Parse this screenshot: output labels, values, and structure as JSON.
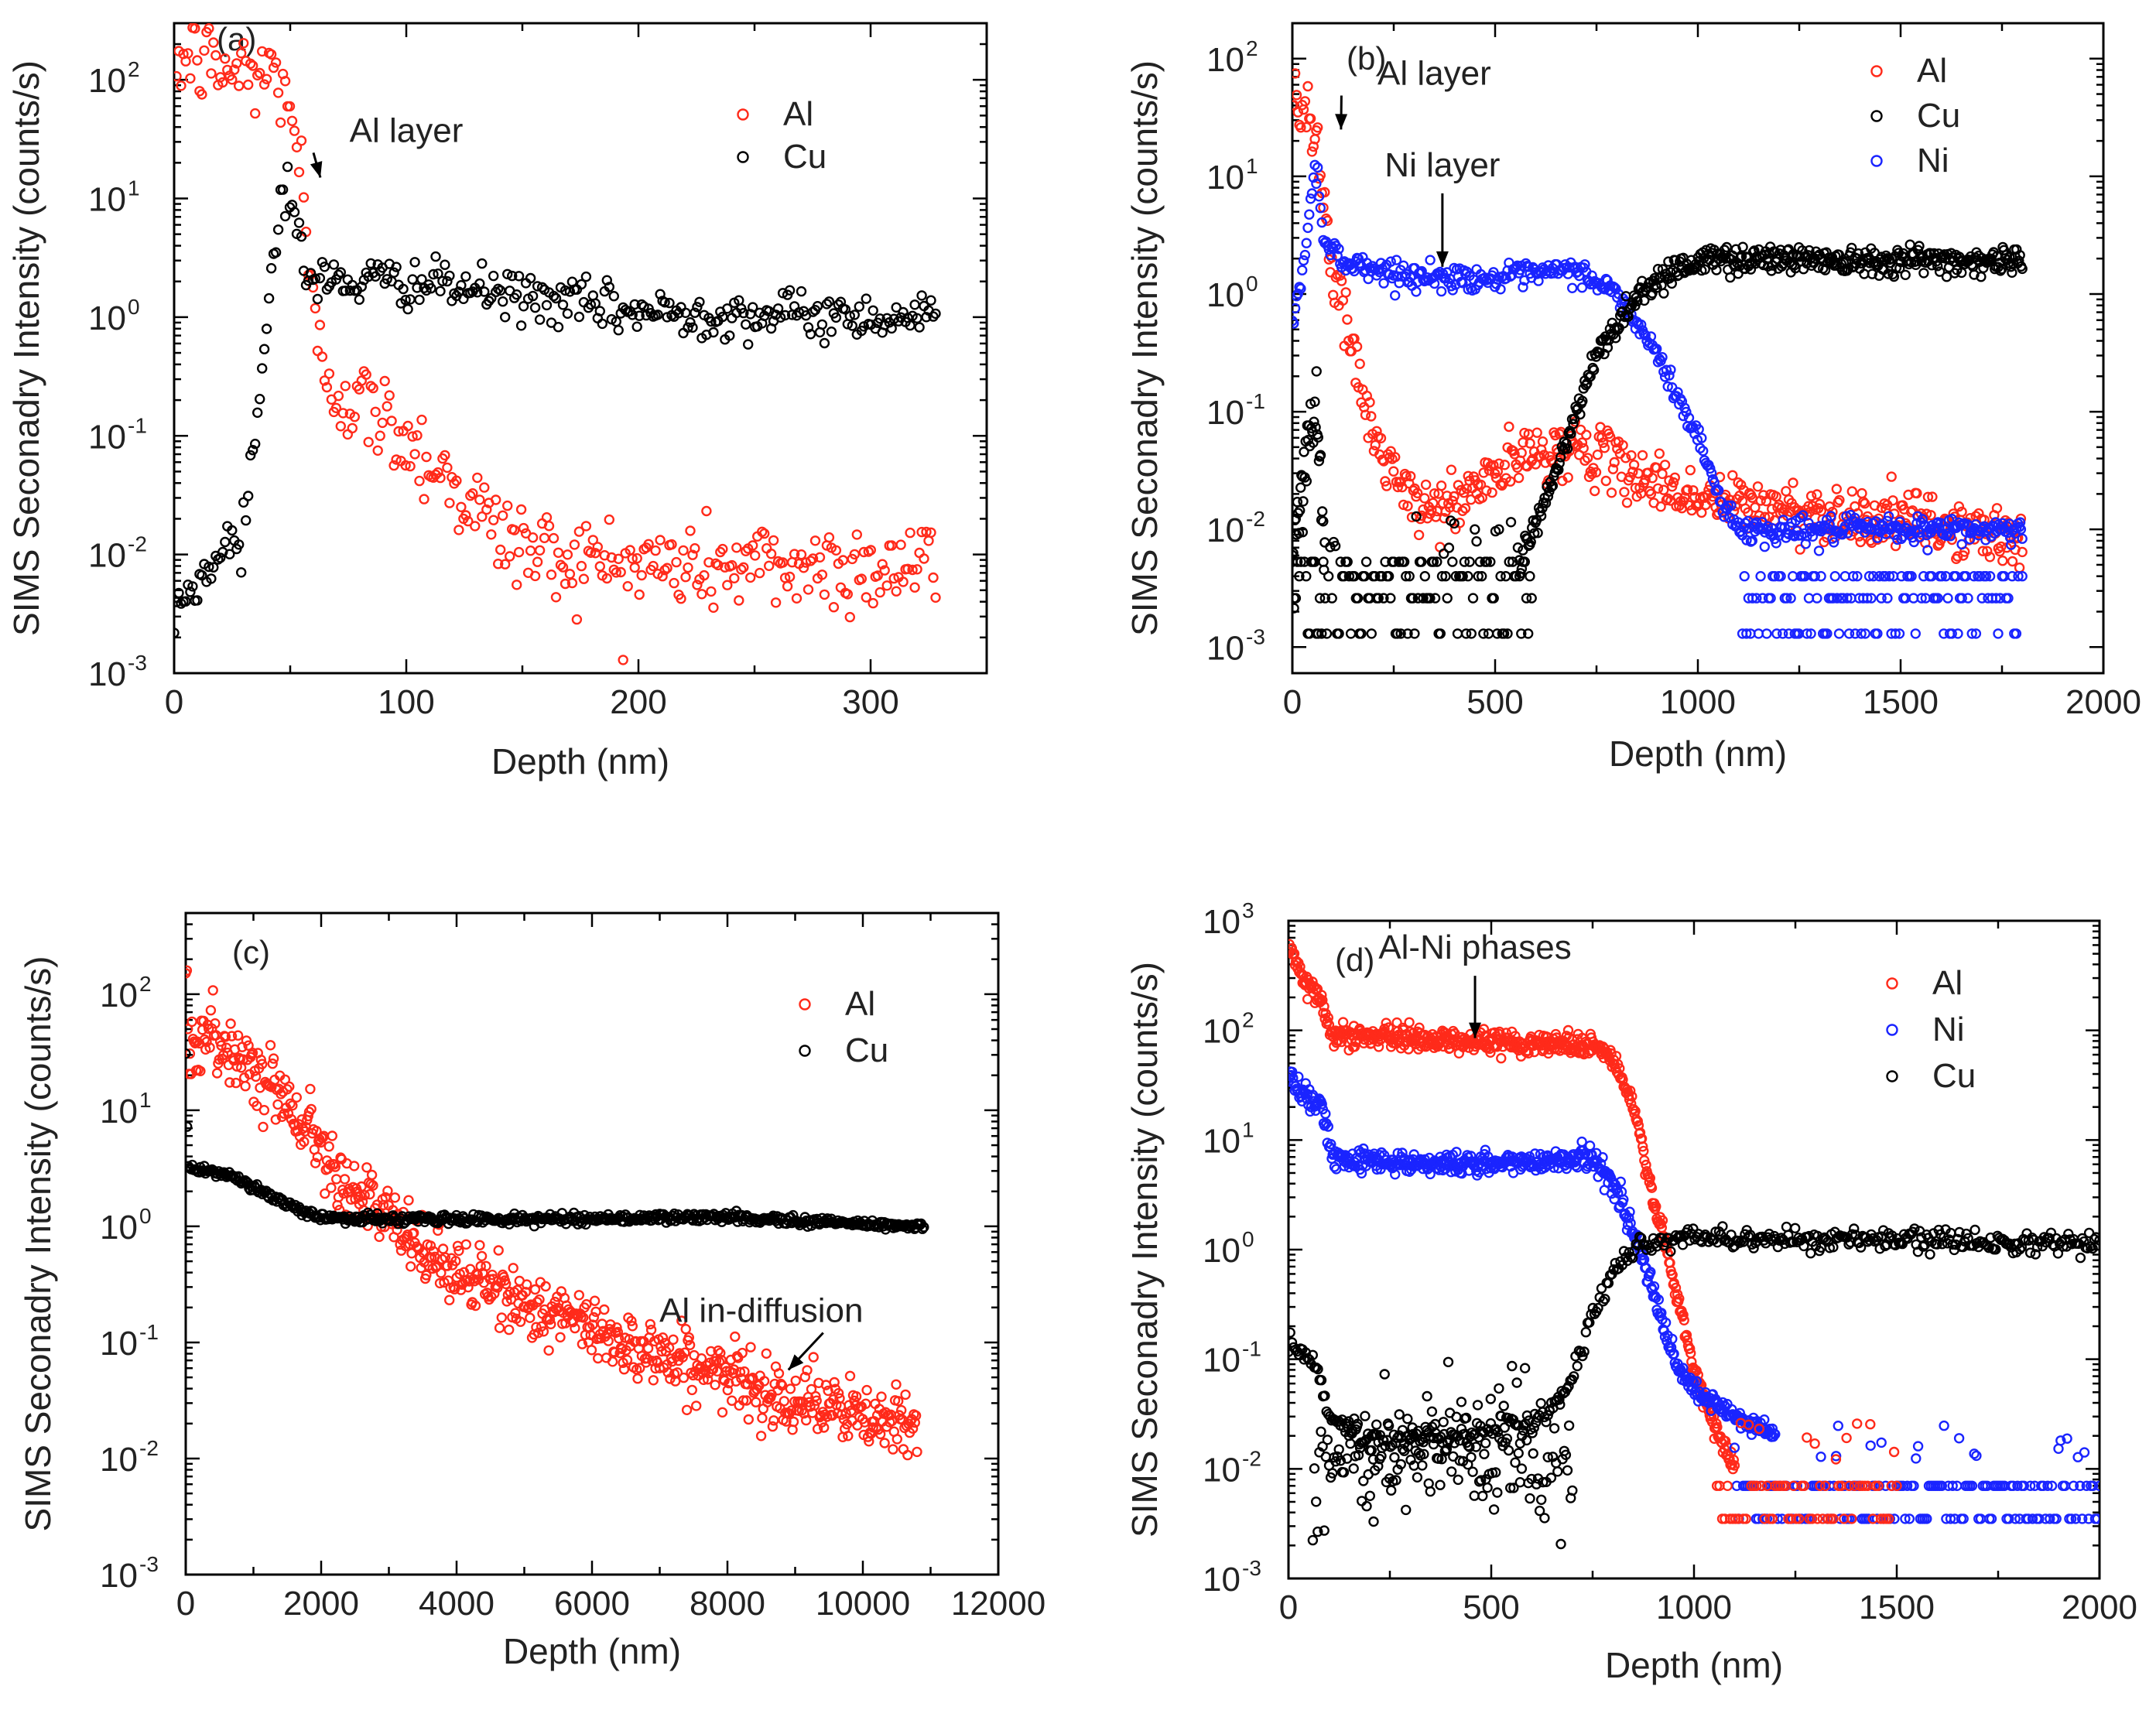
{
  "colors": {
    "Al": "#ff2a1a",
    "Cu": "#000000",
    "Ni": "#1a24ff"
  },
  "chart_data": [
    {
      "type": "scatter",
      "panel_label": "(a)",
      "xlabel": "Depth (nm)",
      "ylabel": "SIMS Seconadry Intensity (counts/s)",
      "xlim": [
        0,
        350
      ],
      "ylim": [
        0.001,
        300
      ],
      "xticks": [
        0,
        100,
        200,
        300
      ],
      "xticklabels": [
        "0",
        "100",
        "200",
        "300"
      ],
      "ytick_exponents": [
        "-3",
        "-2",
        "-1",
        "0",
        "1",
        "2"
      ],
      "legend": [
        "Al",
        "Cu"
      ],
      "annotations": [
        {
          "text": "Al layer",
          "x": 100,
          "y": 30,
          "arrow_to": [
            63,
            15
          ]
        }
      ],
      "series": [
        {
          "name": "Al",
          "color_key": "Al",
          "n": 330,
          "xmax": 328,
          "noise": 0.2,
          "profile": [
            [
              0,
              150
            ],
            [
              10,
              150
            ],
            [
              20,
              120
            ],
            [
              45,
              110
            ],
            [
              50,
              70
            ],
            [
              55,
              15
            ],
            [
              58,
              2
            ],
            [
              62,
              0.5
            ],
            [
              70,
              0.25
            ],
            [
              100,
              0.1
            ],
            [
              120,
              0.04
            ],
            [
              140,
              0.015
            ],
            [
              160,
              0.01
            ],
            [
              200,
              0.008
            ],
            [
              250,
              0.008
            ],
            [
              328,
              0.008
            ]
          ]
        },
        {
          "name": "Cu",
          "color_key": "Cu",
          "n": 330,
          "xmax": 328,
          "noise": 0.1,
          "profile": [
            [
              0,
              0.003
            ],
            [
              10,
              0.006
            ],
            [
              20,
              0.01
            ],
            [
              30,
              0.02
            ],
            [
              35,
              0.1
            ],
            [
              40,
              1
            ],
            [
              45,
              8
            ],
            [
              49,
              15
            ],
            [
              53,
              5
            ],
            [
              58,
              2
            ],
            [
              100,
              2
            ],
            [
              150,
              1.5
            ],
            [
              200,
              1.1
            ],
            [
              250,
              1.05
            ],
            [
              328,
              1
            ]
          ]
        }
      ]
    },
    {
      "type": "scatter",
      "panel_label": "(b)",
      "xlabel": "Depth (nm)",
      "ylabel": "SIMS Seconadry Intensity (counts/s)",
      "xlim": [
        0,
        2000
      ],
      "ylim": [
        0.0006,
        200
      ],
      "xticks": [
        0,
        500,
        1000,
        1500,
        2000
      ],
      "xticklabels": [
        "0",
        "500",
        "1000",
        "1500",
        "2000"
      ],
      "ytick_exponents": [
        "-3",
        "-2",
        "-1",
        "0",
        "1",
        "2"
      ],
      "legend": [
        "Al",
        "Cu",
        "Ni"
      ],
      "annotations": [
        {
          "text": "Al layer",
          "x": 350,
          "y": 60,
          "arrow_to": [
            120,
            25
          ]
        },
        {
          "text": "Ni layer",
          "x": 370,
          "y": 10,
          "arrow_to": [
            370,
            1.7
          ]
        }
      ],
      "series": [
        {
          "name": "Al",
          "color_key": "Al",
          "n": 520,
          "xmax": 1800,
          "noise": 0.12,
          "profile": [
            [
              0,
              50
            ],
            [
              30,
              45
            ],
            [
              60,
              20
            ],
            [
              100,
              1.5
            ],
            [
              150,
              0.3
            ],
            [
              200,
              0.06
            ],
            [
              300,
              0.015
            ],
            [
              400,
              0.016
            ],
            [
              500,
              0.03
            ],
            [
              600,
              0.045
            ],
            [
              700,
              0.05
            ],
            [
              800,
              0.035
            ],
            [
              900,
              0.025
            ],
            [
              1000,
              0.018
            ],
            [
              1200,
              0.015
            ],
            [
              1500,
              0.012
            ],
            [
              1800,
              0.008
            ]
          ]
        },
        {
          "name": "Ni",
          "color_key": "Ni",
          "n": 520,
          "xmax": 1800,
          "noise": 0.05,
          "profile": [
            [
              0,
              0.5
            ],
            [
              30,
              2
            ],
            [
              55,
              13
            ],
            [
              80,
              3
            ],
            [
              120,
              1.9
            ],
            [
              300,
              1.4
            ],
            [
              500,
              1.35
            ],
            [
              700,
              1.6
            ],
            [
              800,
              1.0
            ],
            [
              900,
              0.3
            ],
            [
              1000,
              0.06
            ],
            [
              1050,
              0.02
            ],
            [
              1100,
              0.01
            ]
          ]
        },
        {
          "name": "Ni",
          "color_key": "Ni",
          "n": 140,
          "x0": 1110,
          "xmax": 1800,
          "levels": [
            0.0013,
            0.0026,
            0.004
          ],
          "sparse_above": 0.006
        },
        {
          "name": "Cu",
          "color_key": "Cu",
          "n": 140,
          "x0": 0,
          "xmax": 590,
          "levels": [
            0.0013,
            0.0026,
            0.004,
            0.0053
          ],
          "sparse_above": 0.006
        },
        {
          "name": "Cu",
          "color_key": "Cu",
          "n": 40,
          "xmax": 80,
          "noise": 0.2,
          "profile": [
            [
              0,
              0.005
            ],
            [
              40,
              0.05
            ],
            [
              60,
              0.12
            ],
            [
              80,
              0.01
            ]
          ]
        },
        {
          "name": "Cu",
          "color_key": "Cu",
          "n": 440,
          "x0": 560,
          "xmax": 1800,
          "noise": 0.06,
          "profile": [
            [
              560,
              0.005
            ],
            [
              650,
              0.03
            ],
            [
              750,
              0.3
            ],
            [
              850,
              1.0
            ],
            [
              950,
              1.7
            ],
            [
              1050,
              2.0
            ],
            [
              1200,
              2.0
            ],
            [
              1800,
              1.9
            ]
          ]
        }
      ]
    },
    {
      "type": "scatter",
      "panel_label": "(c)",
      "xlabel": "Depth (nm)",
      "ylabel": "SIMS Seconadry Intensity (counts/s)",
      "xlim": [
        0,
        12000
      ],
      "ylim": [
        0.001,
        500
      ],
      "xticks": [
        0,
        2000,
        4000,
        6000,
        8000,
        10000,
        12000
      ],
      "xticklabels": [
        "0",
        "2000",
        "4000",
        "6000",
        "8000",
        "10000",
        "12000"
      ],
      "ytick_exponents": [
        "-3",
        "-2",
        "-1",
        "0",
        "1",
        "2"
      ],
      "legend": [
        "Al",
        "Cu"
      ],
      "annotations": [
        {
          "text": "Al in-diffusion",
          "x": 8500,
          "y": 0.15,
          "arrow_to": [
            8900,
            0.058
          ]
        }
      ],
      "series": [
        {
          "name": "Al",
          "color_key": "Al",
          "n": 700,
          "xmax": 10800,
          "noise": 0.14,
          "profile": [
            [
              0,
              160
            ],
            [
              40,
              40
            ],
            [
              500,
              38
            ],
            [
              1000,
              25
            ],
            [
              1500,
              12
            ],
            [
              2000,
              5
            ],
            [
              2500,
              2
            ],
            [
              3000,
              1.1
            ],
            [
              3500,
              0.6
            ],
            [
              4000,
              0.4
            ],
            [
              5000,
              0.22
            ],
            [
              6000,
              0.13
            ],
            [
              7000,
              0.08
            ],
            [
              8000,
              0.05
            ],
            [
              9000,
              0.033
            ],
            [
              10000,
              0.022
            ],
            [
              10800,
              0.018
            ]
          ]
        },
        {
          "name": "Cu",
          "color_key": "Cu",
          "n": 560,
          "xmax": 10900,
          "noise": 0.02,
          "profile": [
            [
              0,
              30
            ],
            [
              30,
              3.2
            ],
            [
              500,
              3.0
            ],
            [
              1000,
              2.2
            ],
            [
              1500,
              1.5
            ],
            [
              2000,
              1.2
            ],
            [
              3000,
              1.15
            ],
            [
              5000,
              1.15
            ],
            [
              8000,
              1.2
            ],
            [
              10000,
              1.05
            ],
            [
              10900,
              1.0
            ]
          ]
        }
      ]
    },
    {
      "type": "scatter",
      "panel_label": "(d)",
      "xlabel": "Depth (nm)",
      "ylabel": "SIMS Seconadry Intensity (counts/s)",
      "xlim": [
        0,
        2000
      ],
      "ylim": [
        0.001,
        1000
      ],
      "xticks": [
        0,
        500,
        1000,
        1500,
        2000
      ],
      "xticklabels": [
        "0",
        "500",
        "1000",
        "1500",
        "2000"
      ],
      "ytick_exponents": [
        "-3",
        "-2",
        "-1",
        "0",
        "1",
        "2",
        "3"
      ],
      "legend": [
        "Al",
        "Ni",
        "Cu"
      ],
      "annotations": [
        {
          "text": "Al-Ni phases",
          "x": 460,
          "y": 450,
          "arrow_to": [
            460,
            85
          ]
        }
      ],
      "series": [
        {
          "name": "Al",
          "color_key": "Al",
          "n": 540,
          "xmax": 1100,
          "noise": 0.05,
          "profile": [
            [
              0,
              600
            ],
            [
              30,
              300
            ],
            [
              80,
              200
            ],
            [
              110,
              90
            ],
            [
              300,
              85
            ],
            [
              500,
              78
            ],
            [
              750,
              75
            ],
            [
              800,
              55
            ],
            [
              850,
              20
            ],
            [
              900,
              3
            ],
            [
              950,
              0.5
            ],
            [
              1000,
              0.08
            ],
            [
              1050,
              0.025
            ],
            [
              1100,
              0.01
            ]
          ]
        },
        {
          "name": "Ni",
          "color_key": "Ni",
          "n": 540,
          "xmax": 1200,
          "noise": 0.05,
          "profile": [
            [
              0,
              40
            ],
            [
              30,
              30
            ],
            [
              80,
              20
            ],
            [
              110,
              7
            ],
            [
              300,
              6.2
            ],
            [
              500,
              6.0
            ],
            [
              750,
              7
            ],
            [
              800,
              4
            ],
            [
              850,
              1.5
            ],
            [
              900,
              0.4
            ],
            [
              950,
              0.1
            ],
            [
              1000,
              0.05
            ],
            [
              1100,
              0.03
            ],
            [
              1200,
              0.02
            ]
          ]
        },
        {
          "name": "Cu",
          "color_key": "Cu",
          "n": 470,
          "xmax": 2000,
          "noise": 0.05,
          "profile": [
            [
              0,
              0.15
            ],
            [
              60,
              0.1
            ],
            [
              100,
              0.03
            ],
            [
              200,
              0.018
            ],
            [
              400,
              0.02
            ],
            [
              600,
              0.025
            ],
            [
              700,
              0.06
            ],
            [
              750,
              0.25
            ],
            [
              800,
              0.6
            ],
            [
              850,
              1.0
            ],
            [
              950,
              1.3
            ],
            [
              1200,
              1.25
            ],
            [
              1600,
              1.2
            ],
            [
              2000,
              1.15
            ]
          ]
        },
        {
          "name": "Cu",
          "color_key": "Cu",
          "n": 160,
          "x0": 60,
          "xmax": 700,
          "noise": 0.35,
          "profile": [
            [
              60,
              0.012
            ],
            [
              700,
              0.012
            ]
          ]
        },
        {
          "name": "Cu",
          "color_key": "Cu",
          "n": 1,
          "x0": 210,
          "xmax": 211,
          "noise": 0,
          "profile": [
            [
              210,
              0.0033
            ],
            [
              211,
              0.0033
            ]
          ]
        },
        {
          "name": "Ni",
          "color_key": "Ni",
          "n": 170,
          "x0": 1100,
          "xmax": 2000,
          "levels": [
            0.0035,
            0.007
          ],
          "sparse_above": 0.012
        },
        {
          "name": "Al",
          "color_key": "Al",
          "n": 70,
          "x0": 1050,
          "xmax": 1500,
          "levels": [
            0.0035,
            0.007
          ],
          "sparse_above": 0.012
        }
      ]
    }
  ]
}
